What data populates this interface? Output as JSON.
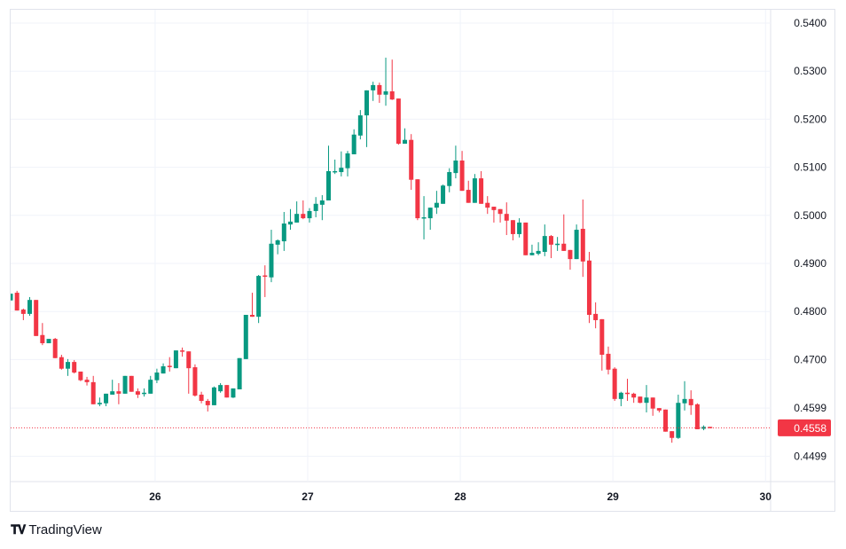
{
  "brand": {
    "logo_mark": "TV",
    "name": "TradingView"
  },
  "colors": {
    "up": "#089981",
    "down": "#F23645",
    "grid": "#f0f3fa",
    "text": "#131722"
  },
  "chart_data": {
    "type": "candlestick",
    "interval": "1h",
    "title": "",
    "y_ticks": [
      0.54,
      0.53,
      0.52,
      0.51,
      0.5,
      0.49,
      0.48,
      0.47,
      0.4599,
      0.4499
    ],
    "y_tick_labels": [
      "0.5400",
      "0.5300",
      "0.5200",
      "0.5100",
      "0.5000",
      "0.4900",
      "0.4800",
      "0.4700",
      "0.4599",
      "0.4499"
    ],
    "ylim": [
      0.444,
      0.5428
    ],
    "x_ticks": [
      {
        "label": "26",
        "candle_index": 23
      },
      {
        "label": "27",
        "candle_index": 47
      },
      {
        "label": "28",
        "candle_index": 71
      },
      {
        "label": "29",
        "candle_index": 95
      },
      {
        "label": "30",
        "candle_index": 119
      }
    ],
    "current_price": 0.4558,
    "current_price_label": "0.4558",
    "grid": true,
    "ohlc": [
      [
        0.4823,
        0.4837,
        0.4823,
        0.4837
      ],
      [
        0.4839,
        0.4843,
        0.4802,
        0.4802
      ],
      [
        0.4804,
        0.4806,
        0.4782,
        0.4795
      ],
      [
        0.4795,
        0.483,
        0.4791,
        0.4824
      ],
      [
        0.4824,
        0.4824,
        0.4749,
        0.4749
      ],
      [
        0.4751,
        0.4776,
        0.473,
        0.4734
      ],
      [
        0.4734,
        0.4743,
        0.4734,
        0.4743
      ],
      [
        0.4743,
        0.4745,
        0.4703,
        0.4703
      ],
      [
        0.4705,
        0.471,
        0.4679,
        0.4681
      ],
      [
        0.4681,
        0.4701,
        0.4666,
        0.4695
      ],
      [
        0.4695,
        0.4699,
        0.4671,
        0.4673
      ],
      [
        0.4675,
        0.4675,
        0.4655,
        0.4657
      ],
      [
        0.4658,
        0.4664,
        0.4646,
        0.4653
      ],
      [
        0.4653,
        0.4666,
        0.4607,
        0.4607
      ],
      [
        0.4607,
        0.4621,
        0.4603,
        0.461
      ],
      [
        0.4609,
        0.4629,
        0.4603,
        0.4629
      ],
      [
        0.4627,
        0.4658,
        0.4627,
        0.4634
      ],
      [
        0.4634,
        0.4651,
        0.4607,
        0.4629
      ],
      [
        0.4629,
        0.4666,
        0.4629,
        0.4666
      ],
      [
        0.4666,
        0.4666,
        0.4633,
        0.4633
      ],
      [
        0.4634,
        0.464,
        0.462,
        0.4627
      ],
      [
        0.463,
        0.464,
        0.4623,
        0.4631
      ],
      [
        0.4629,
        0.4666,
        0.4629,
        0.4658
      ],
      [
        0.4657,
        0.4681,
        0.4651,
        0.4673
      ],
      [
        0.4671,
        0.4692,
        0.4671,
        0.4686
      ],
      [
        0.4687,
        0.4705,
        0.4675,
        0.4686
      ],
      [
        0.4682,
        0.4719,
        0.4682,
        0.4719
      ],
      [
        0.4719,
        0.4725,
        0.4706,
        0.4717
      ],
      [
        0.4717,
        0.4717,
        0.4629,
        0.4682
      ],
      [
        0.4684,
        0.469,
        0.4623,
        0.4625
      ],
      [
        0.4627,
        0.4633,
        0.4609,
        0.4614
      ],
      [
        0.4614,
        0.4618,
        0.4592,
        0.4605
      ],
      [
        0.4605,
        0.4644,
        0.4605,
        0.4642
      ],
      [
        0.4634,
        0.4651,
        0.4631,
        0.4647
      ],
      [
        0.4647,
        0.4647,
        0.4621,
        0.4621
      ],
      [
        0.4621,
        0.464,
        0.462,
        0.464
      ],
      [
        0.4638,
        0.4703,
        0.4638,
        0.4703
      ],
      [
        0.4701,
        0.4793,
        0.4701,
        0.4793
      ],
      [
        0.4793,
        0.4839,
        0.4789,
        0.4789
      ],
      [
        0.4789,
        0.4876,
        0.4776,
        0.4874
      ],
      [
        0.4875,
        0.4896,
        0.483,
        0.4874
      ],
      [
        0.4871,
        0.497,
        0.4861,
        0.4941
      ],
      [
        0.4939,
        0.495,
        0.4919,
        0.4948
      ],
      [
        0.4946,
        0.5007,
        0.4926,
        0.4983
      ],
      [
        0.4981,
        0.5013,
        0.497,
        0.4987
      ],
      [
        0.4985,
        0.5029,
        0.4985,
        0.5003
      ],
      [
        0.5003,
        0.5031,
        0.4992,
        0.4994
      ],
      [
        0.4994,
        0.5015,
        0.4985,
        0.5009
      ],
      [
        0.5009,
        0.5038,
        0.4996,
        0.5024
      ],
      [
        0.5022,
        0.5042,
        0.499,
        0.5031
      ],
      [
        0.5031,
        0.5145,
        0.5031,
        0.5092
      ],
      [
        0.5091,
        0.5116,
        0.5086,
        0.5092
      ],
      [
        0.509,
        0.5133,
        0.5081,
        0.5099
      ],
      [
        0.5098,
        0.5134,
        0.5081,
        0.5129
      ],
      [
        0.5127,
        0.5179,
        0.5127,
        0.5168
      ],
      [
        0.5166,
        0.5219,
        0.5158,
        0.5208
      ],
      [
        0.5208,
        0.526,
        0.5142,
        0.526
      ],
      [
        0.526,
        0.5278,
        0.5238,
        0.5271
      ],
      [
        0.5271,
        0.5276,
        0.5234,
        0.5251
      ],
      [
        0.5251,
        0.5328,
        0.5228,
        0.5258
      ],
      [
        0.5258,
        0.5324,
        0.524,
        0.5241
      ],
      [
        0.5243,
        0.5243,
        0.5147,
        0.5149
      ],
      [
        0.5149,
        0.5181,
        0.5149,
        0.5157
      ],
      [
        0.5157,
        0.5169,
        0.5053,
        0.5074
      ],
      [
        0.5075,
        0.5075,
        0.499,
        0.4994
      ],
      [
        0.4995,
        0.504,
        0.495,
        0.4996
      ],
      [
        0.4994,
        0.5016,
        0.497,
        0.5016
      ],
      [
        0.5016,
        0.5051,
        0.5003,
        0.5026
      ],
      [
        0.5024,
        0.5064,
        0.5024,
        0.5062
      ],
      [
        0.5061,
        0.5098,
        0.5048,
        0.509
      ],
      [
        0.5088,
        0.5145,
        0.5077,
        0.5114
      ],
      [
        0.5114,
        0.5134,
        0.5051,
        0.5051
      ],
      [
        0.5053,
        0.5072,
        0.5026,
        0.5026
      ],
      [
        0.5026,
        0.5086,
        0.5026,
        0.5077
      ],
      [
        0.5077,
        0.5092,
        0.5024,
        0.5024
      ],
      [
        0.5026,
        0.504,
        0.5003,
        0.5016
      ],
      [
        0.5018,
        0.5018,
        0.4985,
        0.5011
      ],
      [
        0.5013,
        0.5013,
        0.4985,
        0.5003
      ],
      [
        0.5003,
        0.5027,
        0.4959,
        0.4989
      ],
      [
        0.499,
        0.499,
        0.4948,
        0.4961
      ],
      [
        0.4961,
        0.4994,
        0.4954,
        0.4985
      ],
      [
        0.4985,
        0.4985,
        0.4917,
        0.4917
      ],
      [
        0.4917,
        0.4939,
        0.4917,
        0.4922
      ],
      [
        0.492,
        0.4944,
        0.4917,
        0.4926
      ],
      [
        0.4924,
        0.4981,
        0.4915,
        0.4957
      ],
      [
        0.4957,
        0.4959,
        0.4911,
        0.4939
      ],
      [
        0.494,
        0.4955,
        0.4926,
        0.4941
      ],
      [
        0.4941,
        0.5002,
        0.4926,
        0.4926
      ],
      [
        0.4928,
        0.4928,
        0.4887,
        0.4909
      ],
      [
        0.4909,
        0.4981,
        0.4909,
        0.497
      ],
      [
        0.4972,
        0.5033,
        0.4872,
        0.4904
      ],
      [
        0.4906,
        0.4924,
        0.4776,
        0.4793
      ],
      [
        0.4795,
        0.4819,
        0.4765,
        0.4782
      ],
      [
        0.4784,
        0.4784,
        0.4677,
        0.471
      ],
      [
        0.4712,
        0.4727,
        0.4669,
        0.4679
      ],
      [
        0.4681,
        0.4684,
        0.4614,
        0.4618
      ],
      [
        0.4618,
        0.4633,
        0.4603,
        0.4631
      ],
      [
        0.4631,
        0.466,
        0.4614,
        0.4629
      ],
      [
        0.4629,
        0.4631,
        0.461,
        0.4621
      ],
      [
        0.4623,
        0.4623,
        0.4609,
        0.461
      ],
      [
        0.461,
        0.4647,
        0.459,
        0.4621
      ],
      [
        0.4621,
        0.4621,
        0.4583,
        0.4598
      ],
      [
        0.4599,
        0.4599,
        0.459,
        0.4594
      ],
      [
        0.4596,
        0.4596,
        0.455,
        0.455
      ],
      [
        0.4551,
        0.4551,
        0.4527,
        0.4537
      ],
      [
        0.4537,
        0.4627,
        0.4535,
        0.461
      ],
      [
        0.4609,
        0.4655,
        0.4594,
        0.4618
      ],
      [
        0.4618,
        0.4636,
        0.4585,
        0.4605
      ],
      [
        0.4607,
        0.4609,
        0.4555,
        0.4555
      ],
      [
        0.4556,
        0.4563,
        0.4553,
        0.456
      ],
      [
        0.456,
        0.456,
        0.4557,
        0.4558
      ]
    ]
  }
}
